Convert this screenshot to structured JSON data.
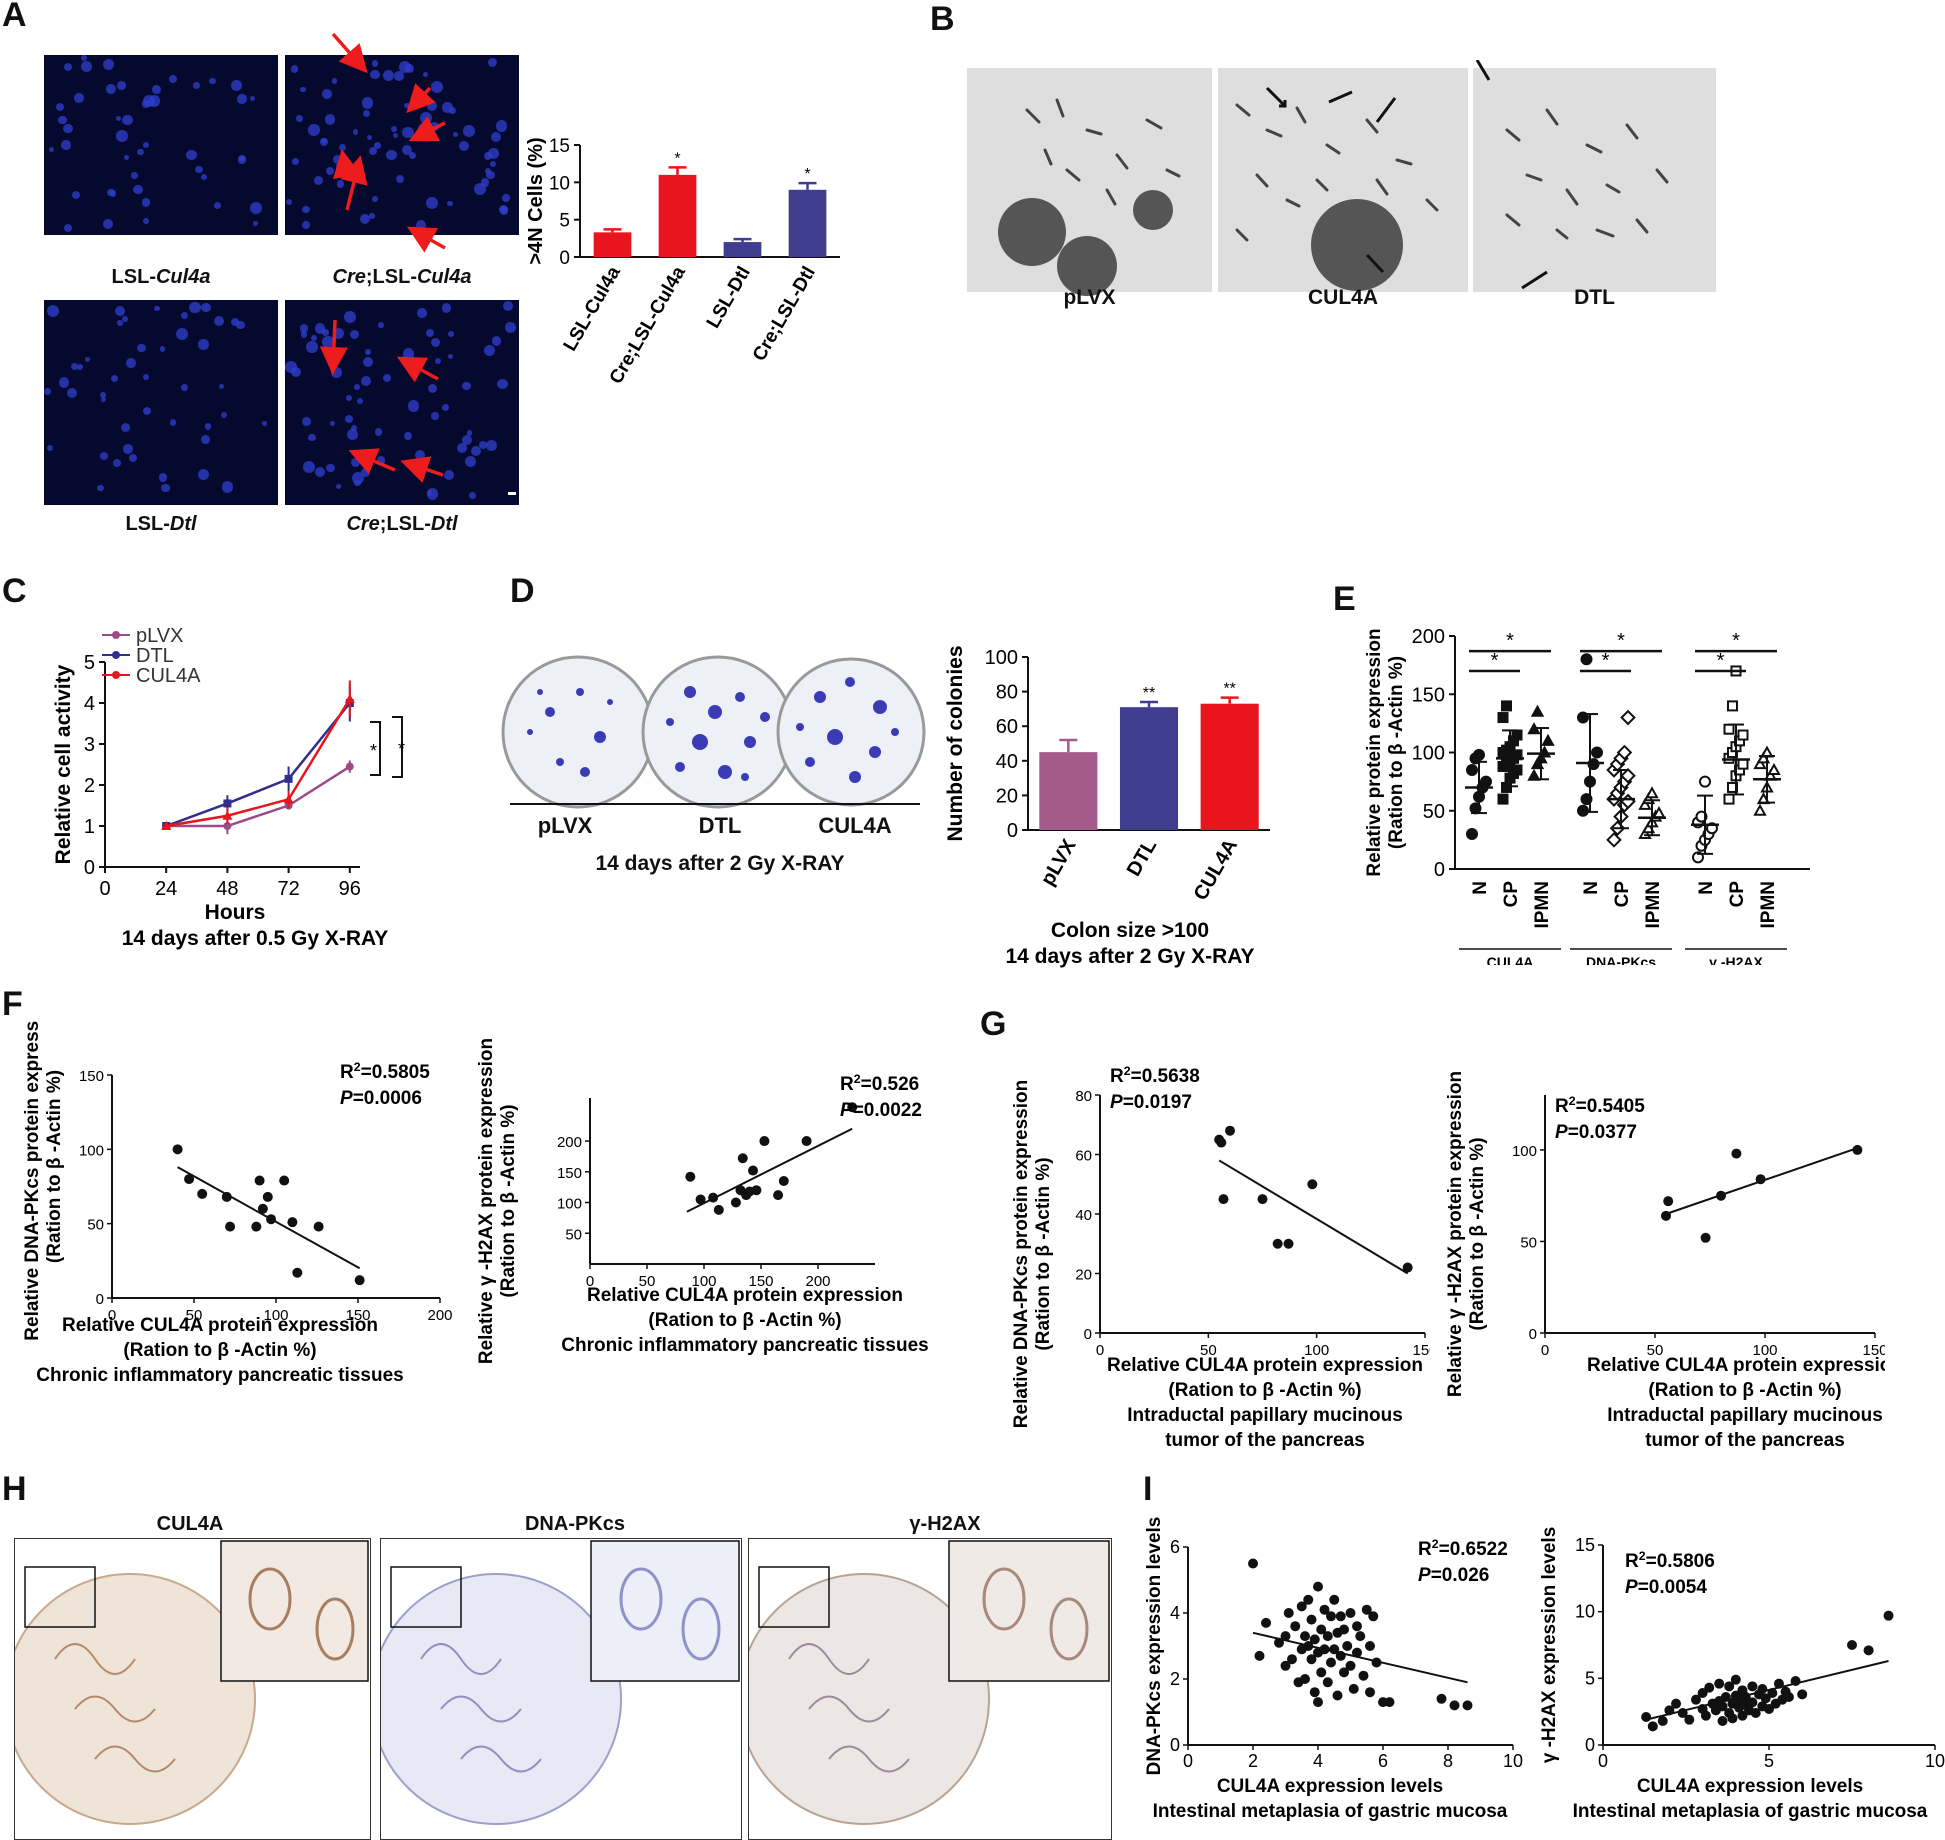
{
  "panels": {
    "A": {
      "label": "A",
      "image_captions": [
        "LSL-",
        "Cul4a",
        "Cre",
        ";LSL-",
        "Cul4a",
        "LSL-",
        "Dtl",
        "Cre",
        ";LSL-",
        "Dtl"
      ]
    },
    "B": {
      "label": "B",
      "image_captions": [
        "pLVX",
        "CUL4A",
        "DTL"
      ]
    },
    "C": {
      "label": "C"
    },
    "D": {
      "label": "D",
      "plate_labels": [
        "pLVX",
        "DTL",
        "CUL4A"
      ],
      "plate_caption": "14 days after 2 Gy X-RAY"
    },
    "E": {
      "label": "E"
    },
    "F": {
      "label": "F"
    },
    "G": {
      "label": "G"
    },
    "H": {
      "label": "H",
      "image_captions": [
        "CUL4A",
        "DNA-PKcs",
        "γ-H2AX"
      ]
    },
    "I": {
      "label": "I"
    }
  },
  "chart_data": [
    {
      "id": "A-bar",
      "type": "bar",
      "categories": [
        "LSL-Cul4a",
        "Cre;LSL-Cul4a",
        "LSL-Dtl",
        "Cre;LSL-Dtl"
      ],
      "values": [
        3.3,
        11.0,
        2.0,
        9.0
      ],
      "errors": [
        0.4,
        1.0,
        0.4,
        0.9
      ],
      "significance": [
        "",
        "*",
        "",
        "*"
      ],
      "colors": [
        "#e8141e",
        "#e8141e",
        "#3f3d8e",
        "#3f3d8e"
      ],
      "ylabel": ">4N Cells (%)",
      "ylim": [
        0,
        15
      ],
      "yticks": [
        0,
        5,
        10,
        15
      ]
    },
    {
      "id": "C-line",
      "type": "line",
      "x": [
        24,
        48,
        72,
        96
      ],
      "series": [
        {
          "name": "pLVX",
          "color": "#9b4b8a",
          "values": [
            1.0,
            1.0,
            1.5,
            2.45
          ],
          "errors": [
            0.05,
            0.2,
            0.1,
            0.15
          ]
        },
        {
          "name": "DTL",
          "color": "#2f2e8c",
          "values": [
            1.0,
            1.55,
            2.15,
            4.0
          ],
          "errors": [
            0.05,
            0.2,
            0.3,
            0.45
          ]
        },
        {
          "name": "CUL4A",
          "color": "#e8141e",
          "values": [
            1.0,
            1.25,
            1.65,
            4.1
          ],
          "errors": [
            0.05,
            0.2,
            0.2,
            0.45
          ]
        }
      ],
      "xlabel": "Hours",
      "caption": "14 days after 0.5 Gy X-RAY",
      "ylabel": "Relative cell activity",
      "xlim": [
        0,
        100
      ],
      "xticks": [
        0,
        24,
        48,
        72,
        96
      ],
      "ylim": [
        0,
        5
      ],
      "yticks": [
        0,
        1,
        2,
        3,
        4,
        5
      ],
      "brackets": [
        "*",
        "*"
      ]
    },
    {
      "id": "D-bar",
      "type": "bar",
      "categories": [
        "pLVX",
        "DTL",
        "CUL4A"
      ],
      "values": [
        45,
        71,
        73
      ],
      "errors": [
        7,
        3,
        3.5
      ],
      "significance": [
        "",
        "**",
        "**"
      ],
      "colors": [
        "#a45b8c",
        "#3f3d8e",
        "#e8141e"
      ],
      "ylabel": "Number of colonies",
      "ylim": [
        0,
        100
      ],
      "yticks": [
        0,
        20,
        40,
        60,
        80,
        100
      ],
      "xlabel": "Colon size >100",
      "caption": "14 days after 2 Gy X-RAY"
    },
    {
      "id": "E-dot",
      "type": "scatter",
      "groups": [
        {
          "protein": "CUL4A",
          "categories": [
            "N",
            "CP",
            "IPMN"
          ],
          "means": [
            70,
            95,
            99
          ],
          "sd": [
            22,
            24,
            22
          ]
        },
        {
          "protein": "DNA-PKcs",
          "categories": [
            "N",
            "CP",
            "IPMN"
          ],
          "means": [
            91,
            60,
            44
          ],
          "sd": [
            42,
            25,
            15
          ]
        },
        {
          "protein": "γ -H2AX",
          "categories": [
            "N",
            "CP",
            "IPMN"
          ],
          "means": [
            38,
            94,
            77
          ],
          "sd": [
            25,
            30,
            20
          ]
        }
      ],
      "points": {
        "CUL4A": {
          "N": [
            30,
            52,
            62,
            70,
            75,
            85,
            95,
            98
          ],
          "CP": [
            60,
            70,
            78,
            82,
            85,
            88,
            90,
            92,
            95,
            98,
            100,
            102,
            105,
            110,
            115,
            130,
            140
          ],
          "IPMN": [
            80,
            90,
            95,
            100,
            110,
            120,
            135
          ]
        },
        "DNA-PKcs": {
          "N": [
            50,
            60,
            75,
            90,
            100,
            130,
            180
          ],
          "CP": [
            25,
            35,
            45,
            55,
            58,
            60,
            65,
            70,
            75,
            80,
            85,
            90,
            95,
            100,
            130
          ],
          "IPMN": [
            30,
            35,
            40,
            45,
            48,
            55,
            60,
            65
          ]
        },
        "γ -H2AX": {
          "N": [
            10,
            20,
            25,
            30,
            35,
            40,
            45,
            75
          ],
          "CP": [
            60,
            70,
            80,
            85,
            90,
            95,
            100,
            105,
            110,
            115,
            120,
            140,
            170
          ],
          "IPMN": [
            50,
            60,
            70,
            80,
            85,
            90,
            95,
            100
          ]
        }
      },
      "significance_brackets": [
        "*",
        "*",
        "*",
        "*",
        "*",
        "*"
      ],
      "ylabel": "Relative protein expression",
      "ylabel2": "(Ration to β -Actin %)",
      "ylim": [
        0,
        200
      ],
      "yticks": [
        0,
        50,
        100,
        150,
        200
      ]
    },
    {
      "id": "F-left",
      "type": "scatter",
      "x": [
        40,
        47,
        55,
        70,
        72,
        88,
        90,
        92,
        95,
        97,
        105,
        110,
        113,
        126,
        151
      ],
      "y": [
        100,
        80,
        70,
        68,
        48,
        48,
        79,
        60,
        68,
        53,
        79,
        51,
        17,
        48,
        12
      ],
      "fit": [
        [
          40,
          88
        ],
        [
          151,
          20
        ]
      ],
      "annotation": {
        "r2": "=0.5805",
        "p": "=0.0006"
      },
      "ylabel": "Relative DNA-PKcs protein  expression",
      "ylabel2": "(Ration to β -Actin %)",
      "xlabel": "Relative CUL4A protein expression",
      "xlabel2": "(Ration to β -Actin %)",
      "caption": "Chronic inflammatory pancreatic tissues",
      "xlim": [
        0,
        200
      ],
      "xticks": [
        0,
        50,
        100,
        150,
        200
      ],
      "ylim": [
        0,
        150
      ],
      "yticks": [
        0,
        50,
        100,
        150
      ]
    },
    {
      "id": "F-right",
      "type": "scatter",
      "x": [
        88,
        97,
        108,
        113,
        128,
        132,
        134,
        137,
        140,
        143,
        146,
        153,
        165,
        170,
        190,
        230
      ],
      "y": [
        142,
        105,
        108,
        88,
        100,
        120,
        172,
        112,
        118,
        152,
        120,
        200,
        112,
        135,
        200,
        255
      ],
      "fit": [
        [
          85,
          85
        ],
        [
          230,
          220
        ]
      ],
      "annotation": {
        "r2": "=0.526",
        "p": "=0.0022"
      },
      "ylabel": "Relative γ -H2AX protein  expression",
      "ylabel2": "(Ration to β -Actin %)",
      "xlabel": "Relative CUL4A protein expression",
      "xlabel2": "(Ration to β -Actin %)",
      "caption": "Chronic inflammatory pancreatic tissues",
      "xlim": [
        0,
        250
      ],
      "xticks": [
        0,
        50,
        100,
        150,
        200
      ],
      "ylim": [
        0,
        270
      ],
      "yticks": [
        50,
        100,
        150,
        200
      ]
    },
    {
      "id": "G-left",
      "type": "scatter",
      "x": [
        55,
        56,
        57,
        60,
        75,
        82,
        87,
        98,
        142
      ],
      "y": [
        65,
        64,
        45,
        68,
        45,
        30,
        30,
        50,
        22
      ],
      "fit": [
        [
          55,
          58
        ],
        [
          142,
          20
        ]
      ],
      "annotation": {
        "r2": "=0.5638",
        "p": "=0.0197"
      },
      "ylabel": "Relative DNA-PKcs protein  expression",
      "ylabel2": "(Ration to β -Actin %)",
      "xlabel": "Relative CUL4A protein expression",
      "xlabel2": "(Ration to β -Actin %)",
      "caption": "Intraductal papillary mucinous",
      "caption2": "tumor of the pancreas",
      "xlim": [
        0,
        150
      ],
      "xticks": [
        0,
        50,
        100,
        150
      ],
      "ylim": [
        0,
        80
      ],
      "yticks": [
        0,
        20,
        40,
        60,
        80
      ]
    },
    {
      "id": "G-right",
      "type": "scatter",
      "x": [
        55,
        56,
        73,
        80,
        87,
        98,
        142
      ],
      "y": [
        64,
        72,
        52,
        75,
        98,
        84,
        100
      ],
      "fit": [
        [
          55,
          65
        ],
        [
          142,
          101
        ]
      ],
      "annotation": {
        "r2": "=0.5405",
        "p": "=0.0377"
      },
      "ylabel": "Relative γ -H2AX protein  expression",
      "ylabel2": "(Ration to β -Actin %)",
      "xlabel": "Relative CUL4A protein expression",
      "xlabel2": "(Ration to β -Actin %)",
      "caption": "Intraductal papillary mucinous",
      "caption2": "tumor of the pancreas",
      "xlim": [
        0,
        150
      ],
      "xticks": [
        0,
        50,
        100,
        150
      ],
      "ylim": [
        0,
        130
      ],
      "yticks": [
        0,
        50,
        100
      ]
    },
    {
      "id": "I-left",
      "type": "scatter",
      "x": [
        2.0,
        2.2,
        2.4,
        2.8,
        3.0,
        3.0,
        3.1,
        3.2,
        3.3,
        3.4,
        3.5,
        3.5,
        3.6,
        3.6,
        3.7,
        3.7,
        3.8,
        3.8,
        3.9,
        3.9,
        4.0,
        4.0,
        4.0,
        4.1,
        4.1,
        4.2,
        4.2,
        4.3,
        4.3,
        4.4,
        4.4,
        4.5,
        4.5,
        4.6,
        4.6,
        4.7,
        4.7,
        4.8,
        4.8,
        4.9,
        5.0,
        5.0,
        5.1,
        5.2,
        5.2,
        5.3,
        5.4,
        5.5,
        5.6,
        5.6,
        5.7,
        5.8,
        6.0,
        6.2,
        7.8,
        8.2,
        8.6
      ],
      "y": [
        5.5,
        2.7,
        3.7,
        3.1,
        3.3,
        2.4,
        4.0,
        2.6,
        3.6,
        1.9,
        2.9,
        4.2,
        3.3,
        2.0,
        3.0,
        4.4,
        2.6,
        3.8,
        1.6,
        3.2,
        2.8,
        4.8,
        1.3,
        3.5,
        2.2,
        4.1,
        2.9,
        3.3,
        1.9,
        3.9,
        2.5,
        4.4,
        2.9,
        3.4,
        1.5,
        2.7,
        3.9,
        2.2,
        3.5,
        3.0,
        2.4,
        4.0,
        1.7,
        2.8,
        3.6,
        3.3,
        2.1,
        4.1,
        3.0,
        1.6,
        3.9,
        2.5,
        1.3,
        1.3,
        1.4,
        1.2,
        1.2
      ],
      "fit": [
        [
          2.0,
          3.4
        ],
        [
          8.6,
          1.9
        ]
      ],
      "annotation": {
        "r2": "=0.6522",
        "p": "=0.026"
      },
      "ylabel": "DNA-PKcs expression levels",
      "xlabel": "CUL4A expression levels",
      "caption": "Intestinal metaplasia of gastric mucosa",
      "xlim": [
        0,
        10
      ],
      "xticks": [
        0,
        2,
        4,
        6,
        8,
        10
      ],
      "ylim": [
        0,
        6
      ],
      "yticks": [
        0,
        2,
        4,
        6
      ]
    },
    {
      "id": "I-right",
      "type": "scatter",
      "x": [
        1.3,
        1.5,
        1.8,
        2.0,
        2.2,
        2.4,
        2.6,
        2.8,
        3.0,
        3.0,
        3.1,
        3.2,
        3.3,
        3.4,
        3.5,
        3.5,
        3.6,
        3.6,
        3.7,
        3.8,
        3.8,
        3.9,
        3.9,
        4.0,
        4.0,
        4.1,
        4.1,
        4.2,
        4.2,
        4.3,
        4.3,
        4.4,
        4.5,
        4.5,
        4.6,
        4.7,
        4.8,
        4.8,
        4.9,
        5.0,
        5.1,
        5.2,
        5.3,
        5.4,
        5.5,
        5.6,
        5.8,
        6.0,
        7.5,
        8.0,
        8.6
      ],
      "y": [
        2.1,
        1.4,
        1.8,
        2.6,
        3.1,
        2.4,
        1.9,
        3.4,
        2.7,
        3.9,
        2.2,
        4.3,
        3.1,
        2.6,
        4.6,
        3.3,
        2.9,
        1.8,
        3.6,
        4.4,
        2.4,
        3.1,
        2.0,
        3.7,
        4.9,
        2.8,
        3.4,
        2.2,
        4.1,
        3.0,
        3.6,
        2.6,
        4.4,
        3.2,
        2.4,
        3.8,
        2.9,
        4.2,
        3.5,
        2.7,
        3.9,
        3.1,
        4.6,
        3.4,
        4.0,
        3.6,
        4.8,
        3.8,
        7.5,
        7.1,
        9.7
      ],
      "fit": [
        [
          1.3,
          1.9
        ],
        [
          8.6,
          6.3
        ]
      ],
      "annotation": {
        "r2": "=0.5806",
        "p": "=0.0054"
      },
      "ylabel": "γ -H2AX expression levels",
      "xlabel": "CUL4A expression levels",
      "caption": "Intestinal metaplasia of gastric mucosa",
      "xlim": [
        0,
        10
      ],
      "xticks": [
        0,
        5,
        10
      ],
      "ylim": [
        0,
        15
      ],
      "yticks": [
        0,
        5,
        10,
        15
      ]
    }
  ]
}
